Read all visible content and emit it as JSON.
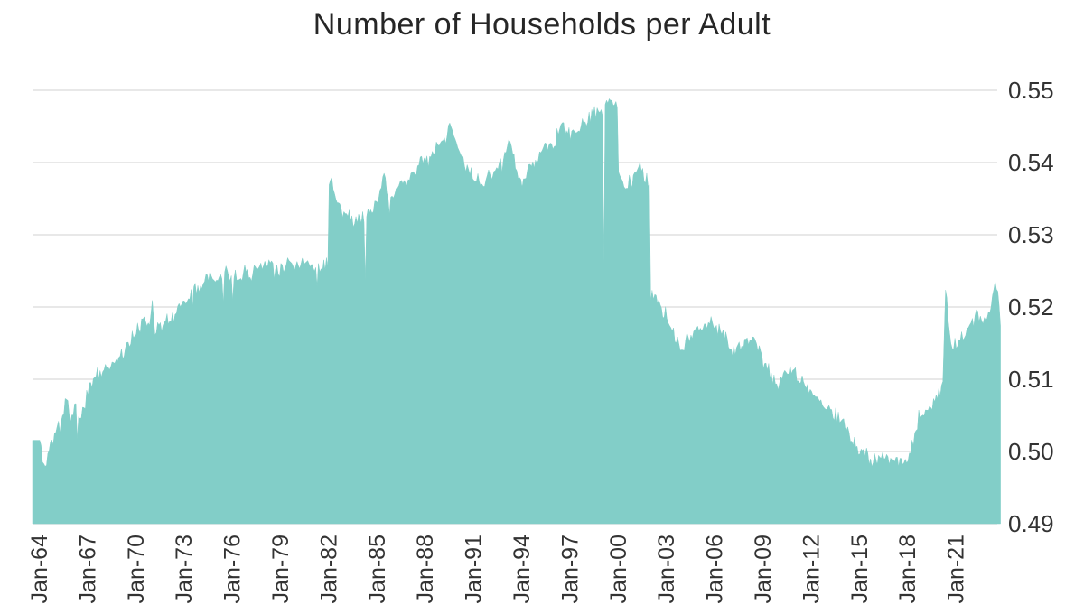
{
  "title": "Number of Households per Adult",
  "colors": {
    "area": "#82CEC8",
    "grid": "#D9D9D9",
    "tick_text": "#333333",
    "title_text": "#262626",
    "background": "#FFFFFF"
  },
  "chart_data": {
    "type": "area",
    "title": "Number of Households per Adult",
    "series_name": "Households per Adult",
    "x_unit": "month",
    "x_min": 1964.0,
    "x_max": 2023.75,
    "ylim": [
      0.49,
      0.55
    ],
    "y_ticks": [
      0.49,
      0.5,
      0.51,
      0.52,
      0.53,
      0.54,
      0.55
    ],
    "y_tick_decimals": 2,
    "grid": "horizontal",
    "legend": "none",
    "y_axis_side": "right",
    "x_tick_years": [
      1964,
      1967,
      1970,
      1973,
      1976,
      1979,
      1982,
      1985,
      1988,
      1991,
      1994,
      1997,
      2000,
      2003,
      2006,
      2009,
      2012,
      2015,
      2018,
      2021
    ],
    "x_tick_labels": [
      "Jan-64",
      "Jan-67",
      "Jan-70",
      "Jan-73",
      "Jan-76",
      "Jan-79",
      "Jan-82",
      "Jan-85",
      "Jan-88",
      "Jan-91",
      "Jan-94",
      "Jan-97",
      "Jan-00",
      "Jan-03",
      "Jan-06",
      "Jan-09",
      "Jan-12",
      "Jan-15",
      "Jan-18",
      "Jan-21"
    ],
    "anchors": [
      [
        1964.0,
        0.5015
      ],
      [
        1964.17,
        0.499
      ],
      [
        1964.33,
        0.4978
      ],
      [
        1964.5,
        0.5
      ],
      [
        1964.75,
        0.5015
      ],
      [
        1965.0,
        0.5025
      ],
      [
        1965.4,
        0.5045
      ],
      [
        1965.7,
        0.5078
      ],
      [
        1965.9,
        0.504
      ],
      [
        1966.2,
        0.5062
      ],
      [
        1966.5,
        0.5048
      ],
      [
        1966.8,
        0.506
      ],
      [
        1967.0,
        0.5088
      ],
      [
        1967.5,
        0.5105
      ],
      [
        1968.0,
        0.5112
      ],
      [
        1968.5,
        0.5122
      ],
      [
        1969.0,
        0.5132
      ],
      [
        1969.5,
        0.515
      ],
      [
        1970.0,
        0.5162
      ],
      [
        1970.5,
        0.5185
      ],
      [
        1970.83,
        0.5175
      ],
      [
        1971.0,
        0.5212
      ],
      [
        1971.17,
        0.5172
      ],
      [
        1971.5,
        0.5175
      ],
      [
        1972.0,
        0.5182
      ],
      [
        1972.5,
        0.5192
      ],
      [
        1973.0,
        0.521
      ],
      [
        1973.5,
        0.5222
      ],
      [
        1974.0,
        0.5232
      ],
      [
        1974.42,
        0.525
      ],
      [
        1974.75,
        0.5235
      ],
      [
        1975.0,
        0.5238
      ],
      [
        1975.5,
        0.5248
      ],
      [
        1976.2,
        0.5242
      ],
      [
        1976.7,
        0.525
      ],
      [
        1977.0,
        0.5248
      ],
      [
        1977.5,
        0.5255
      ],
      [
        1978.0,
        0.5258
      ],
      [
        1978.5,
        0.5268
      ],
      [
        1979.0,
        0.5252
      ],
      [
        1979.5,
        0.5262
      ],
      [
        1980.0,
        0.5258
      ],
      [
        1980.5,
        0.5268
      ],
      [
        1981.0,
        0.5252
      ],
      [
        1981.5,
        0.5258
      ],
      [
        1981.92,
        0.5262
      ],
      [
        1982.0,
        0.5375
      ],
      [
        1982.17,
        0.5378
      ],
      [
        1982.5,
        0.5342
      ],
      [
        1983.0,
        0.533
      ],
      [
        1983.5,
        0.5318
      ],
      [
        1984.0,
        0.5322
      ],
      [
        1984.5,
        0.5332
      ],
      [
        1985.0,
        0.5345
      ],
      [
        1985.4,
        0.5382
      ],
      [
        1985.7,
        0.5352
      ],
      [
        1986.0,
        0.536
      ],
      [
        1986.5,
        0.5368
      ],
      [
        1987.0,
        0.5382
      ],
      [
        1987.5,
        0.5395
      ],
      [
        1988.0,
        0.5402
      ],
      [
        1988.5,
        0.5412
      ],
      [
        1989.0,
        0.5428
      ],
      [
        1989.6,
        0.5448
      ],
      [
        1990.0,
        0.542
      ],
      [
        1990.5,
        0.5392
      ],
      [
        1991.0,
        0.538
      ],
      [
        1991.5,
        0.5368
      ],
      [
        1992.0,
        0.5385
      ],
      [
        1992.7,
        0.5395
      ],
      [
        1993.3,
        0.5428
      ],
      [
        1993.6,
        0.5388
      ],
      [
        1994.0,
        0.5378
      ],
      [
        1994.5,
        0.539
      ],
      [
        1995.0,
        0.5408
      ],
      [
        1995.5,
        0.5422
      ],
      [
        1996.0,
        0.5432
      ],
      [
        1996.5,
        0.5448
      ],
      [
        1997.0,
        0.544
      ],
      [
        1997.5,
        0.5448
      ],
      [
        1998.0,
        0.5455
      ],
      [
        1998.5,
        0.5468
      ],
      [
        1999.0,
        0.5475
      ],
      [
        1999.5,
        0.5486
      ],
      [
        1999.92,
        0.5478
      ],
      [
        2000.0,
        0.5385
      ],
      [
        2000.4,
        0.5368
      ],
      [
        2000.8,
        0.5375
      ],
      [
        2001.2,
        0.5392
      ],
      [
        2001.5,
        0.5388
      ],
      [
        2001.92,
        0.5368
      ],
      [
        2002.0,
        0.5215
      ],
      [
        2002.5,
        0.5208
      ],
      [
        2003.0,
        0.5185
      ],
      [
        2003.5,
        0.5155
      ],
      [
        2004.0,
        0.514
      ],
      [
        2004.5,
        0.5165
      ],
      [
        2005.0,
        0.517
      ],
      [
        2005.5,
        0.5175
      ],
      [
        2005.8,
        0.5185
      ],
      [
        2006.0,
        0.5168
      ],
      [
        2006.5,
        0.5165
      ],
      [
        2007.0,
        0.5138
      ],
      [
        2007.5,
        0.5148
      ],
      [
        2008.0,
        0.5152
      ],
      [
        2008.5,
        0.5158
      ],
      [
        2009.0,
        0.5125
      ],
      [
        2009.5,
        0.5105
      ],
      [
        2009.9,
        0.5092
      ],
      [
        2010.4,
        0.5108
      ],
      [
        2011.0,
        0.5112
      ],
      [
        2011.5,
        0.5095
      ],
      [
        2012.0,
        0.508
      ],
      [
        2012.5,
        0.5068
      ],
      [
        2013.0,
        0.506
      ],
      [
        2013.5,
        0.5048
      ],
      [
        2014.0,
        0.5038
      ],
      [
        2014.5,
        0.5015
      ],
      [
        2015.0,
        0.5
      ],
      [
        2015.5,
        0.4992
      ],
      [
        2016.0,
        0.4986
      ],
      [
        2016.4,
        0.4995
      ],
      [
        2016.8,
        0.4985
      ],
      [
        2017.2,
        0.4988
      ],
      [
        2017.6,
        0.4983
      ],
      [
        2018.0,
        0.4996
      ],
      [
        2018.3,
        0.501
      ],
      [
        2018.7,
        0.505
      ],
      [
        2019.0,
        0.5052
      ],
      [
        2019.5,
        0.5065
      ],
      [
        2020.0,
        0.5085
      ],
      [
        2020.17,
        0.5098
      ],
      [
        2020.33,
        0.5218
      ],
      [
        2020.5,
        0.519
      ],
      [
        2020.67,
        0.5148
      ],
      [
        2021.0,
        0.5148
      ],
      [
        2021.5,
        0.5158
      ],
      [
        2022.0,
        0.518
      ],
      [
        2022.3,
        0.5192
      ],
      [
        2022.6,
        0.5175
      ],
      [
        2023.0,
        0.5188
      ],
      [
        2023.4,
        0.5232
      ],
      [
        2023.58,
        0.5228
      ],
      [
        2023.75,
        0.518
      ]
    ],
    "notable_single_month_dips": [
      [
        1975.42,
        0.5205
      ],
      [
        1976.0,
        0.5208
      ],
      [
        1984.25,
        0.5235
      ],
      [
        1999.08,
        0.5258
      ]
    ],
    "noise": {
      "amplitude": 0.0013,
      "dip_probability": 0.012,
      "dip_min": 0.0012,
      "dip_range": 0.0028,
      "seed": 11
    }
  }
}
